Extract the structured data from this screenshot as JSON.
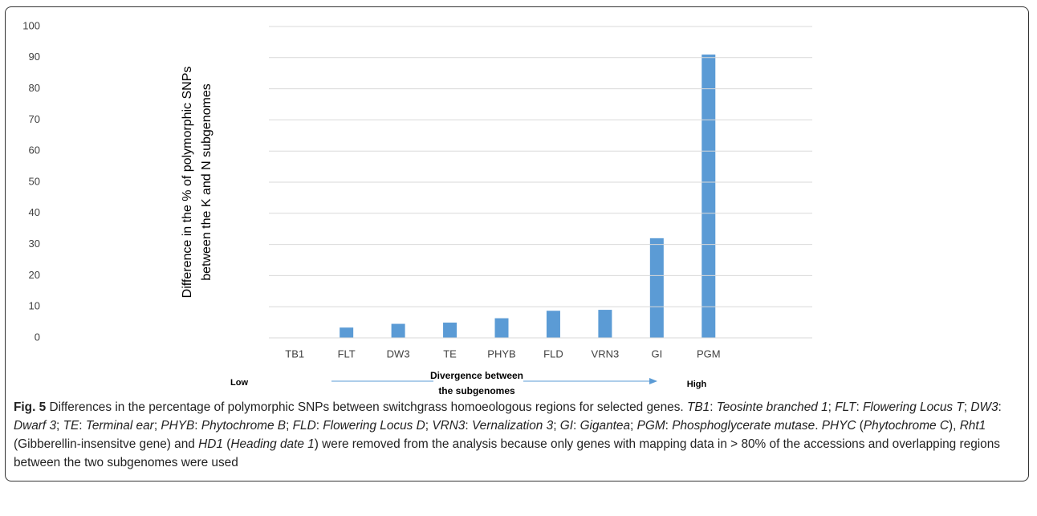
{
  "chart_data": {
    "type": "bar",
    "ylabel": [
      "Difference in the % of polymorphic  SNPs",
      "between the K and N subgenomes"
    ],
    "categories": [
      "TB1",
      "FLT",
      "DW3",
      "TE",
      "PHYB",
      "FLD",
      "VRN3",
      "GI",
      "PGM"
    ],
    "values": [
      0,
      3.3,
      4.5,
      4.9,
      6.3,
      8.7,
      9,
      32,
      91
    ],
    "color": "#5b9bd5",
    "ylim": [
      0,
      100
    ],
    "yticks": [
      0,
      10,
      20,
      30,
      40,
      50,
      60,
      70,
      80,
      90,
      100
    ],
    "grid": true,
    "annotations": [
      "Low",
      "Divergence between",
      "the subgenomes",
      "High"
    ]
  },
  "caption": {
    "label": "Fig. 5",
    "runs": [
      {
        "text": " Differences in the percentage of polymorphic SNPs between switchgrass homoeologous regions for selected genes. ",
        "italic": false
      },
      {
        "text": "TB1",
        "italic": true
      },
      {
        "text": ": ",
        "italic": false
      },
      {
        "text": "Teosinte branched 1",
        "italic": true
      },
      {
        "text": "; ",
        "italic": false
      },
      {
        "text": "FLT",
        "italic": true
      },
      {
        "text": ": ",
        "italic": false
      },
      {
        "text": "Flowering Locus T",
        "italic": true
      },
      {
        "text": "; ",
        "italic": false
      },
      {
        "text": "DW3",
        "italic": true
      },
      {
        "text": ": ",
        "italic": false
      },
      {
        "text": "Dwarf 3",
        "italic": true
      },
      {
        "text": "; ",
        "italic": false
      },
      {
        "text": "TE",
        "italic": true
      },
      {
        "text": ": ",
        "italic": false
      },
      {
        "text": "Terminal ear",
        "italic": true
      },
      {
        "text": "; ",
        "italic": false
      },
      {
        "text": "PHYB",
        "italic": true
      },
      {
        "text": ": ",
        "italic": false
      },
      {
        "text": "Phytochrome B",
        "italic": true
      },
      {
        "text": "; ",
        "italic": false
      },
      {
        "text": "FLD",
        "italic": true
      },
      {
        "text": ": ",
        "italic": false
      },
      {
        "text": "Flowering Locus D",
        "italic": true
      },
      {
        "text": "; ",
        "italic": false
      },
      {
        "text": "VRN3",
        "italic": true
      },
      {
        "text": ": ",
        "italic": false
      },
      {
        "text": "Vernalization 3",
        "italic": true
      },
      {
        "text": "; ",
        "italic": false
      },
      {
        "text": "GI",
        "italic": true
      },
      {
        "text": ": ",
        "italic": false
      },
      {
        "text": "Gigantea",
        "italic": true
      },
      {
        "text": "; ",
        "italic": false
      },
      {
        "text": "PGM",
        "italic": true
      },
      {
        "text": ": ",
        "italic": false
      },
      {
        "text": "Phosphoglycerate mutase",
        "italic": true
      },
      {
        "text": ". ",
        "italic": false
      },
      {
        "text": "PHYC",
        "italic": true
      },
      {
        "text": " (",
        "italic": false
      },
      {
        "text": "Phytochrome C",
        "italic": true
      },
      {
        "text": "), ",
        "italic": false
      },
      {
        "text": "Rht1",
        "italic": true
      },
      {
        "text": " (Gibberellin-insensitve gene) and ",
        "italic": false
      },
      {
        "text": "HD1",
        "italic": true
      },
      {
        "text": " (",
        "italic": false
      },
      {
        "text": "Heading date 1",
        "italic": true
      },
      {
        "text": ") were removed from the analysis because only genes with mapping data in > 80% of the accessions and overlapping regions between the two subgenomes were used",
        "italic": false
      }
    ]
  }
}
